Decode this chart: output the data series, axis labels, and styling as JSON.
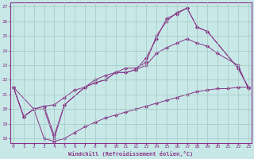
{
  "background_color": "#c8e8e8",
  "line_color": "#883388",
  "marker_color": "#883388",
  "grid_color": "#a0c8c0",
  "xlabel": "Windchill (Refroidissement éolien,°C)",
  "ylabel_ticks": [
    18,
    19,
    20,
    21,
    22,
    23,
    24,
    25,
    26,
    27
  ],
  "xlabel_ticks": [
    0,
    1,
    2,
    3,
    4,
    5,
    6,
    7,
    8,
    9,
    10,
    11,
    12,
    13,
    14,
    15,
    16,
    17,
    18,
    19,
    20,
    21,
    22,
    23
  ],
  "xlim": [
    -0.3,
    23.3
  ],
  "ylim": [
    17.7,
    27.3
  ],
  "lines": [
    {
      "x": [
        0,
        1,
        2,
        3,
        4,
        5,
        7,
        8,
        9,
        10,
        11,
        12,
        13,
        14,
        15,
        16,
        17,
        18,
        19,
        22,
        23
      ],
      "y": [
        21.5,
        19.5,
        20.0,
        20.0,
        18.0,
        20.3,
        21.5,
        21.8,
        22.0,
        22.5,
        22.5,
        22.7,
        23.5,
        24.8,
        26.2,
        26.5,
        26.9,
        25.6,
        25.3,
        22.8,
        21.5
      ]
    },
    {
      "x": [
        0,
        1,
        2,
        3,
        4,
        5,
        7,
        8,
        9,
        10,
        11,
        12,
        13,
        14,
        15,
        16,
        17,
        18,
        19,
        22,
        23
      ],
      "y": [
        21.5,
        19.5,
        20.0,
        20.2,
        18.2,
        20.3,
        21.5,
        22.0,
        22.3,
        22.5,
        22.8,
        22.8,
        23.2,
        25.0,
        26.0,
        26.6,
        26.9,
        25.6,
        25.3,
        22.8,
        21.5
      ]
    },
    {
      "x": [
        0,
        2,
        3,
        4,
        5,
        6,
        7,
        8,
        9,
        10,
        11,
        12,
        13,
        14,
        15,
        16,
        17,
        18,
        19,
        20,
        22,
        23
      ],
      "y": [
        21.5,
        20.0,
        20.2,
        20.3,
        20.8,
        21.3,
        21.5,
        21.8,
        22.0,
        22.5,
        22.5,
        22.7,
        23.0,
        23.8,
        24.2,
        24.5,
        24.8,
        24.5,
        24.3,
        23.8,
        23.0,
        21.4
      ]
    },
    {
      "x": [
        0,
        1,
        2,
        3,
        4,
        5,
        6,
        7,
        8,
        9,
        10,
        11,
        12,
        13,
        14,
        15,
        16,
        17,
        18,
        19,
        20,
        21,
        22,
        23
      ],
      "y": [
        21.5,
        19.5,
        20.0,
        18.0,
        17.8,
        18.0,
        18.4,
        18.8,
        19.1,
        19.4,
        19.6,
        19.8,
        20.0,
        20.2,
        20.4,
        20.6,
        20.8,
        21.0,
        21.2,
        21.3,
        21.4,
        21.4,
        21.5,
        21.5
      ]
    }
  ]
}
